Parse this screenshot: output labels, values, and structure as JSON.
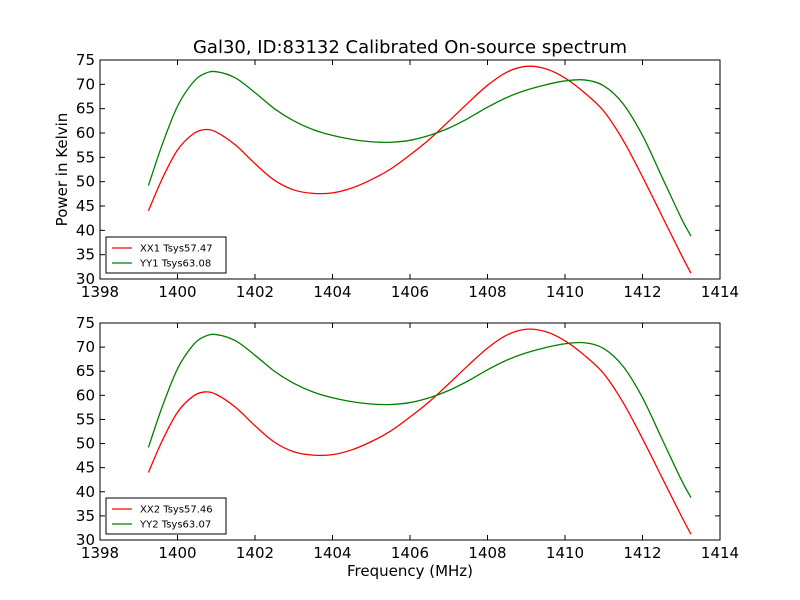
{
  "title": "Gal30, ID:83132 Calibrated On-source spectrum",
  "chart_data": [
    {
      "type": "line",
      "title": "Gal30, ID:83132 Calibrated On-source spectrum",
      "xlabel": "",
      "ylabel": "Power in Kelvin",
      "xlim": [
        1398,
        1414
      ],
      "ylim": [
        30,
        75
      ],
      "xticks": [
        1398,
        1400,
        1402,
        1404,
        1406,
        1408,
        1410,
        1412,
        1414
      ],
      "yticks": [
        30,
        35,
        40,
        45,
        50,
        55,
        60,
        65,
        70,
        75
      ],
      "legend_position": "lower-left",
      "series": [
        {
          "name": "XX1 Tsys57.47",
          "color": "#ff0000",
          "x": [
            1399.25,
            1399.6,
            1400.0,
            1400.4,
            1400.7,
            1401.0,
            1401.5,
            1402.0,
            1402.5,
            1403.0,
            1403.5,
            1404.0,
            1404.5,
            1405.0,
            1405.5,
            1406.0,
            1406.5,
            1407.0,
            1407.5,
            1408.0,
            1408.5,
            1409.0,
            1409.5,
            1410.0,
            1410.5,
            1411.0,
            1411.5,
            1412.0,
            1412.5,
            1413.0,
            1413.25
          ],
          "y": [
            44.0,
            50.5,
            56.5,
            59.8,
            60.7,
            60.2,
            57.5,
            53.7,
            50.3,
            48.3,
            47.6,
            47.7,
            48.7,
            50.4,
            52.6,
            55.5,
            58.7,
            62.4,
            66.2,
            69.8,
            72.5,
            73.7,
            73.2,
            71.3,
            68.3,
            64.5,
            58.5,
            51.0,
            43.0,
            35.0,
            31.2
          ]
        },
        {
          "name": "YY1 Tsys63.08",
          "color": "#008000",
          "x": [
            1399.25,
            1399.6,
            1400.0,
            1400.4,
            1400.7,
            1401.0,
            1401.5,
            1402.0,
            1402.5,
            1403.0,
            1403.5,
            1404.0,
            1404.5,
            1405.0,
            1405.5,
            1406.0,
            1406.5,
            1407.0,
            1407.5,
            1408.0,
            1408.5,
            1409.0,
            1409.5,
            1410.0,
            1410.5,
            1411.0,
            1411.5,
            1412.0,
            1412.5,
            1413.0,
            1413.25
          ],
          "y": [
            49.2,
            57.5,
            65.5,
            70.4,
            72.2,
            72.6,
            71.3,
            68.3,
            65.0,
            62.5,
            60.7,
            59.5,
            58.7,
            58.2,
            58.1,
            58.5,
            59.5,
            61.0,
            63.0,
            65.3,
            67.3,
            68.8,
            69.9,
            70.7,
            70.9,
            69.7,
            66.0,
            59.5,
            51.0,
            42.5,
            38.8
          ]
        }
      ]
    },
    {
      "type": "line",
      "title": "",
      "xlabel": "Frequency (MHz)",
      "ylabel": "",
      "xlim": [
        1398,
        1414
      ],
      "ylim": [
        30,
        75
      ],
      "xticks": [
        1398,
        1400,
        1402,
        1404,
        1406,
        1408,
        1410,
        1412,
        1414
      ],
      "yticks": [
        30,
        35,
        40,
        45,
        50,
        55,
        60,
        65,
        70,
        75
      ],
      "legend_position": "lower-left",
      "series": [
        {
          "name": "XX2 Tsys57.46",
          "color": "#ff0000",
          "x": [
            1399.25,
            1399.6,
            1400.0,
            1400.4,
            1400.7,
            1401.0,
            1401.5,
            1402.0,
            1402.5,
            1403.0,
            1403.5,
            1404.0,
            1404.5,
            1405.0,
            1405.5,
            1406.0,
            1406.5,
            1407.0,
            1407.5,
            1408.0,
            1408.5,
            1409.0,
            1409.5,
            1410.0,
            1410.5,
            1411.0,
            1411.5,
            1412.0,
            1412.5,
            1413.0,
            1413.25
          ],
          "y": [
            44.0,
            50.5,
            56.5,
            59.8,
            60.7,
            60.2,
            57.5,
            53.7,
            50.3,
            48.3,
            47.6,
            47.7,
            48.7,
            50.4,
            52.6,
            55.5,
            58.7,
            62.4,
            66.2,
            69.8,
            72.5,
            73.7,
            73.2,
            71.3,
            68.3,
            64.5,
            58.5,
            51.0,
            43.0,
            35.0,
            31.2
          ]
        },
        {
          "name": "YY2 Tsys63.07",
          "color": "#008000",
          "x": [
            1399.25,
            1399.6,
            1400.0,
            1400.4,
            1400.7,
            1401.0,
            1401.5,
            1402.0,
            1402.5,
            1403.0,
            1403.5,
            1404.0,
            1404.5,
            1405.0,
            1405.5,
            1406.0,
            1406.5,
            1407.0,
            1407.5,
            1408.0,
            1408.5,
            1409.0,
            1409.5,
            1410.0,
            1410.5,
            1411.0,
            1411.5,
            1412.0,
            1412.5,
            1413.0,
            1413.25
          ],
          "y": [
            49.2,
            57.5,
            65.5,
            70.4,
            72.2,
            72.6,
            71.3,
            68.3,
            65.0,
            62.5,
            60.7,
            59.5,
            58.7,
            58.2,
            58.1,
            58.5,
            59.5,
            61.0,
            63.0,
            65.3,
            67.3,
            68.8,
            69.9,
            70.7,
            70.9,
            69.7,
            66.0,
            59.5,
            51.0,
            42.5,
            38.8
          ]
        }
      ]
    }
  ]
}
